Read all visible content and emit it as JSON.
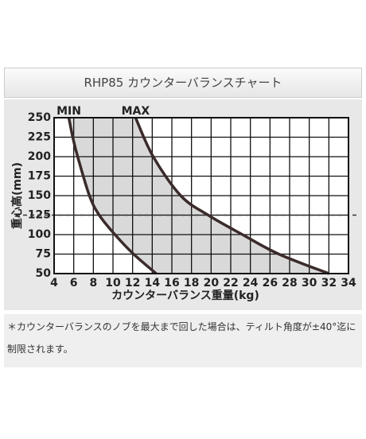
{
  "chart_data": {
    "type": "line",
    "title": "RHP85 カウンターバランスチャート",
    "x_label": "カウンターバランス重量(kg)",
    "y_label": "重心高(mm)",
    "series": [
      {
        "name": "MIN",
        "color": "#3b2b2b",
        "x": [
          5.5,
          5.9,
          6.4,
          7.6,
          8.6,
          10.2,
          12.1,
          14.4
        ],
        "values": [
          250,
          225,
          200,
          150,
          125,
          100,
          75,
          50
        ]
      },
      {
        "name": "MAX",
        "color": "#3b2b2b",
        "x": [
          12.3,
          14.1,
          16.9,
          19.7,
          23.2,
          26.9,
          32.0
        ],
        "values": [
          250,
          200,
          150,
          125,
          100,
          75,
          50
        ]
      }
    ],
    "range_fill": "#d9d9d9",
    "xlim": [
      4,
      34
    ],
    "ylim": [
      50,
      250
    ],
    "xticks": [
      4,
      6,
      8,
      10,
      12,
      14,
      16,
      18,
      20,
      22,
      24,
      26,
      28,
      30,
      32,
      34
    ],
    "yticks": [
      50,
      75,
      100,
      125,
      150,
      175,
      200,
      225,
      250
    ],
    "grid": true,
    "reference_line": 125
  },
  "note": "＊カウンターバランスのノブを最大まで回した場合は、ティルト角度が±40°迄に制限されます。"
}
